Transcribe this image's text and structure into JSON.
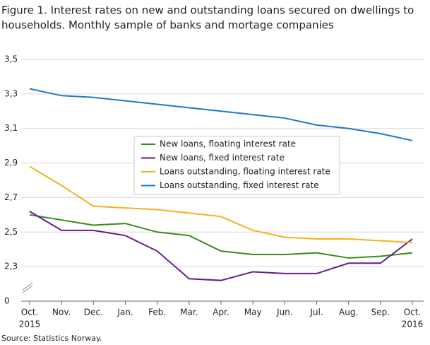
{
  "chart_data": {
    "type": "line",
    "title": [
      "Figure 1. Interest rates on new and outstanding loans secured on dwellings to",
      "households. Monthly sample of banks and mortage companies"
    ],
    "source": "Source: Statistics Norway.",
    "categories": [
      "Oct.",
      "Nov.",
      "Dec.",
      "Jan.",
      "Feb.",
      "Mar.",
      "Apr.",
      "May",
      "Jun.",
      "Jul.",
      "Aug.",
      "Sep.",
      "Oct."
    ],
    "year_labels": [
      "2015",
      "2016"
    ],
    "ylim": [
      0,
      3.5
    ],
    "axis_break": [
      0,
      2.1
    ],
    "yticks": [
      0,
      {
        "value": 2.3,
        "label": "2,3"
      },
      {
        "value": 2.5,
        "label": "2,5"
      },
      {
        "value": 2.7,
        "label": "2,7"
      },
      {
        "value": 2.9,
        "label": "2,9"
      },
      {
        "value": 3.1,
        "label": "3,1"
      },
      {
        "value": 3.3,
        "label": "3,3"
      },
      {
        "value": 3.5,
        "label": "3,5"
      }
    ],
    "grid": true,
    "series": [
      {
        "name": "New loans, floating interest rate",
        "color": "#3a8a1e",
        "values": [
          2.6,
          2.57,
          2.54,
          2.55,
          2.5,
          2.48,
          2.39,
          2.37,
          2.37,
          2.38,
          2.35,
          2.36,
          2.38
        ]
      },
      {
        "name": "New loans, fixed interest rate",
        "color": "#6a1b8a",
        "values": [
          2.62,
          2.51,
          2.51,
          2.48,
          2.39,
          2.23,
          2.22,
          2.27,
          2.26,
          2.26,
          2.32,
          2.32,
          2.46
        ]
      },
      {
        "name": "Loans outstanding, floating interest rate",
        "color": "#f2b21b",
        "values": [
          2.88,
          2.77,
          2.65,
          2.64,
          2.63,
          2.61,
          2.59,
          2.51,
          2.47,
          2.46,
          2.46,
          2.45,
          2.44
        ]
      },
      {
        "name": "Loans outstanding, fixed interest rate",
        "color": "#1f78c8",
        "values": [
          3.33,
          3.29,
          3.28,
          3.26,
          3.24,
          3.22,
          3.2,
          3.18,
          3.16,
          3.12,
          3.1,
          3.07,
          3.03
        ]
      }
    ]
  }
}
